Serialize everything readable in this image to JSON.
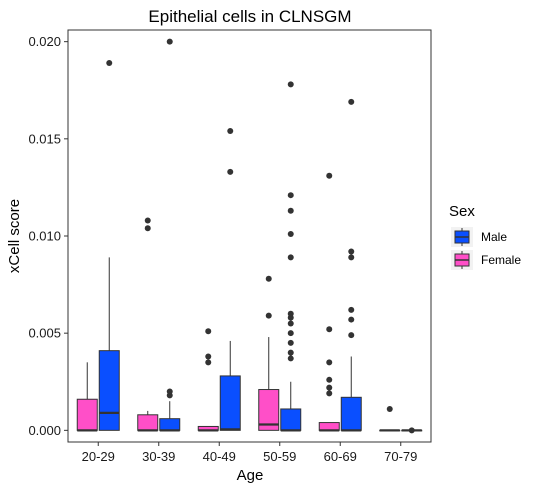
{
  "chart_data": {
    "type": "box",
    "title": "Epithelial cells in CLNSGM",
    "xlabel": "Age",
    "ylabel": "xCell score",
    "ylim": [
      -0.0006,
      0.0206
    ],
    "yticks": [
      "0.000",
      "0.005",
      "0.010",
      "0.015",
      "0.020"
    ],
    "ytick_values": [
      0.0,
      0.005,
      0.01,
      0.015,
      0.02
    ],
    "categories": [
      "20-29",
      "30-39",
      "40-49",
      "50-59",
      "60-69",
      "70-79"
    ],
    "grid": false,
    "legend": {
      "title": "Sex",
      "position": "right"
    },
    "series": [
      {
        "name": "Male",
        "color": "#0a4fff",
        "boxes": [
          {
            "q1": 0.0,
            "median": 0.0009,
            "q3": 0.0041,
            "whisker_low": 0.0,
            "whisker_high": 0.0089,
            "outliers": [
              0.0189
            ]
          },
          {
            "q1": 0.0,
            "median": 0.0,
            "q3": 0.0006,
            "whisker_low": 0.0,
            "whisker_high": 0.0015,
            "outliers": [
              0.0018,
              0.002,
              0.02
            ]
          },
          {
            "q1": 0.0,
            "median": 5e-05,
            "q3": 0.0028,
            "whisker_low": 0.0,
            "whisker_high": 0.0046,
            "outliers": [
              0.0133,
              0.0154
            ]
          },
          {
            "q1": 0.0,
            "median": 0.0,
            "q3": 0.0011,
            "whisker_low": 0.0,
            "whisker_high": 0.0025,
            "outliers": [
              0.0037,
              0.004,
              0.0045,
              0.005,
              0.0055,
              0.0058,
              0.006,
              0.0089,
              0.0101,
              0.0113,
              0.0121,
              0.0178
            ]
          },
          {
            "q1": 0.0,
            "median": 0.0,
            "q3": 0.0017,
            "whisker_low": 0.0,
            "whisker_high": 0.0038,
            "outliers": [
              0.0049,
              0.0057,
              0.0062,
              0.0089,
              0.0092,
              0.0169
            ]
          },
          {
            "q1": 0.0,
            "median": 0.0,
            "q3": 0.0,
            "whisker_low": 0.0,
            "whisker_high": 0.0,
            "outliers": [
              0.0
            ]
          }
        ]
      },
      {
        "name": "Female",
        "color": "#ff4fc8",
        "boxes": [
          {
            "q1": 0.0,
            "median": 0.0,
            "q3": 0.0016,
            "whisker_low": 0.0,
            "whisker_high": 0.0035,
            "outliers": []
          },
          {
            "q1": 0.0,
            "median": 0.0,
            "q3": 0.0008,
            "whisker_low": 0.0,
            "whisker_high": 0.001,
            "outliers": [
              0.0104,
              0.0108
            ]
          },
          {
            "q1": 0.0,
            "median": 0.0,
            "q3": 0.0002,
            "whisker_low": 0.0,
            "whisker_high": 0.0002,
            "outliers": [
              0.0035,
              0.0038,
              0.0051
            ]
          },
          {
            "q1": 0.0,
            "median": 0.0003,
            "q3": 0.0021,
            "whisker_low": 0.0,
            "whisker_high": 0.0048,
            "outliers": [
              0.0059,
              0.0078
            ]
          },
          {
            "q1": 0.0,
            "median": 0.0,
            "q3": 0.0004,
            "whisker_low": 0.0,
            "whisker_high": 0.0004,
            "outliers": [
              0.0019,
              0.0022,
              0.0026,
              0.0035,
              0.0052,
              0.0131
            ]
          },
          {
            "q1": 0.0,
            "median": 0.0,
            "q3": 0.0,
            "whisker_low": 0.0,
            "whisker_high": 0.0,
            "outliers": [
              0.0011
            ]
          }
        ]
      }
    ]
  }
}
